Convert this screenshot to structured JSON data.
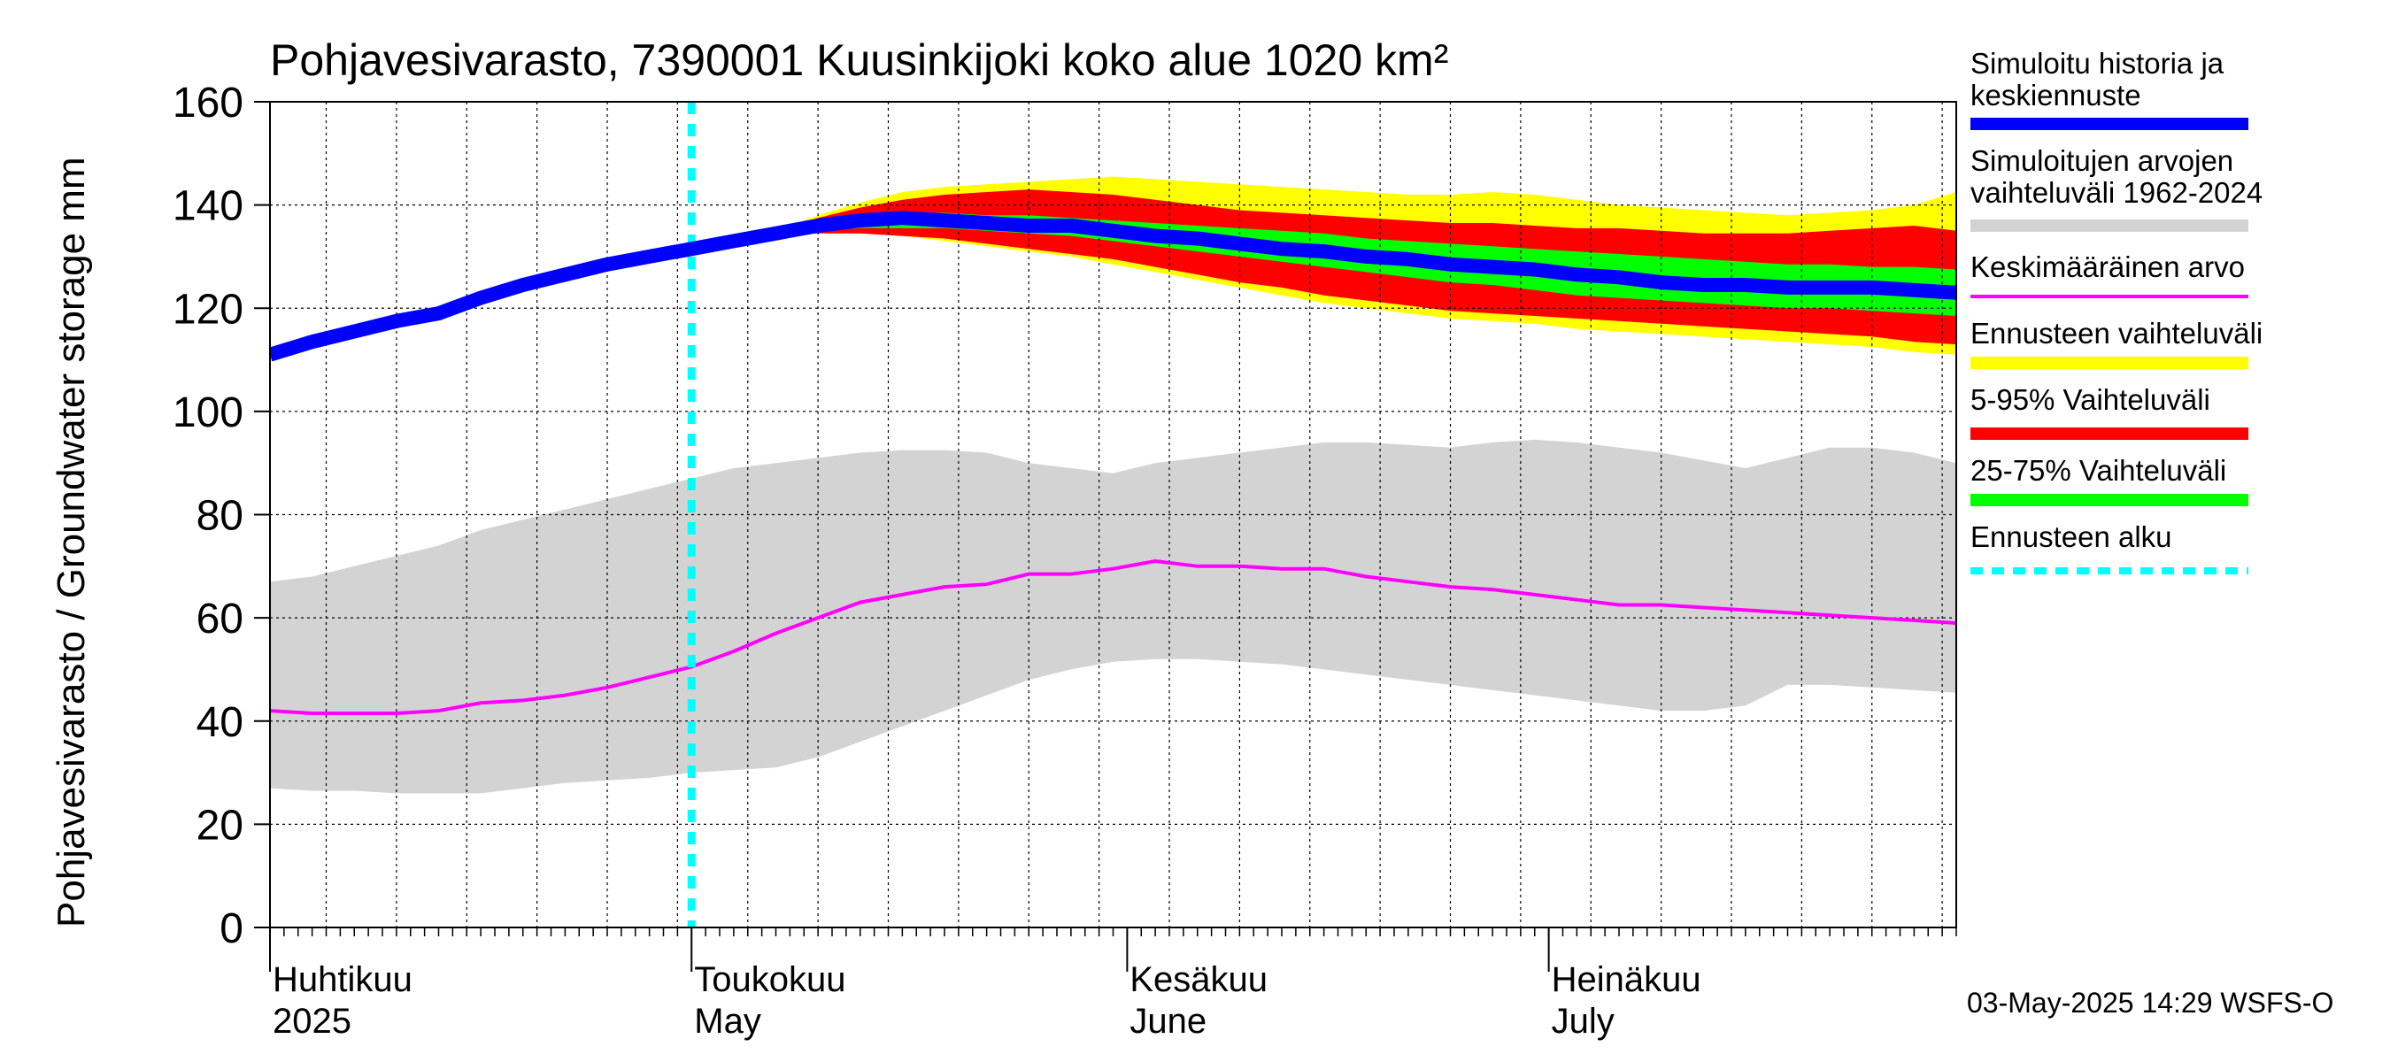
{
  "chart_data": {
    "type": "area",
    "title": "Pohjavesivarasto, 7390001 Kuusinkijoki koko alue 1020 km²",
    "ylabel": "Pohjavesivarasto / Groundwater storage   mm",
    "ylim": [
      0,
      160
    ],
    "yticks": [
      0,
      20,
      40,
      60,
      80,
      100,
      120,
      140,
      160
    ],
    "x_range_days": [
      0,
      120
    ],
    "x_start_date": "2025-04-01",
    "forecast_start_day": 30,
    "month_labels": [
      {
        "day": 0,
        "fi": "Huhtikuu",
        "en": "2025"
      },
      {
        "day": 30,
        "fi": "Toukokuu",
        "en": "May"
      },
      {
        "day": 61,
        "fi": "Kesäkuu",
        "en": "June"
      },
      {
        "day": 91,
        "fi": "Heinäkuu",
        "en": "July"
      }
    ],
    "grid": true,
    "legend": [
      {
        "label": "Simuloitu historia ja keskiennuste",
        "color": "#0000ff",
        "style": "thick"
      },
      {
        "label": "Simuloitujen arvojen vaihteluväli 1962-2024",
        "color": "#d3d3d3",
        "style": "band"
      },
      {
        "label": "Keskimääräinen arvo",
        "color": "#ff00ff",
        "style": "line"
      },
      {
        "label": "Ennusteen vaihteluväli",
        "color": "#ffff00",
        "style": "band"
      },
      {
        "label": "5-95% Vaihteluväli",
        "color": "#ff0000",
        "style": "band"
      },
      {
        "label": "25-75% Vaihteluväli",
        "color": "#00ff00",
        "style": "band"
      },
      {
        "label": "Ennusteen alku",
        "color": "#00ffff",
        "style": "dashed"
      }
    ],
    "series": {
      "history_band": {
        "x": [
          0,
          3,
          6,
          9,
          12,
          15,
          18,
          21,
          24,
          27,
          30,
          33,
          36,
          39,
          42,
          45,
          48,
          51,
          54,
          57,
          60,
          63,
          66,
          69,
          72,
          75,
          78,
          81,
          84,
          87,
          90,
          93,
          96,
          99,
          102,
          105,
          108,
          111,
          114,
          117,
          120
        ],
        "upper": [
          67,
          68,
          70,
          72,
          74,
          77,
          79,
          81,
          83,
          85,
          87,
          89,
          90,
          91,
          92,
          92.5,
          92.5,
          92,
          90,
          89,
          88,
          90,
          91,
          92,
          93,
          94,
          94,
          93.5,
          93,
          94,
          94.5,
          94,
          93,
          92,
          90.5,
          89,
          91,
          93,
          93,
          92,
          90
        ],
        "lower": [
          27,
          26.5,
          26.5,
          26,
          26,
          26,
          27,
          28,
          28.5,
          29,
          30,
          30.5,
          31,
          33,
          36,
          39,
          42,
          45,
          48,
          50,
          51.5,
          52,
          52,
          51.5,
          51,
          50,
          49,
          48,
          47,
          46,
          45,
          44,
          43,
          42,
          42,
          43,
          47,
          47,
          46.5,
          46,
          45.5
        ]
      },
      "mean": {
        "x": [
          0,
          3,
          6,
          9,
          12,
          15,
          18,
          21,
          24,
          27,
          30,
          33,
          36,
          39,
          42,
          45,
          48,
          51,
          54,
          57,
          60,
          63,
          66,
          69,
          72,
          75,
          78,
          81,
          84,
          87,
          90,
          93,
          96,
          99,
          102,
          105,
          108,
          111,
          114,
          117,
          120
        ],
        "values": [
          42,
          41.5,
          41.5,
          41.5,
          42,
          43.5,
          44,
          45,
          46.5,
          48.5,
          50.5,
          53.5,
          57,
          60,
          63,
          64.5,
          66,
          66.5,
          68.5,
          68.5,
          69.5,
          71,
          70,
          70,
          69.5,
          69.5,
          68,
          67,
          66,
          65.5,
          64.5,
          63.5,
          62.5,
          62.5,
          62,
          61.5,
          61,
          60.5,
          60,
          59.5,
          59
        ]
      },
      "simulated": {
        "x": [
          0,
          3,
          6,
          9,
          12,
          15,
          18,
          21,
          24,
          27,
          30,
          33,
          36,
          39,
          42,
          45,
          48,
          51,
          54,
          57,
          60,
          63,
          66,
          69,
          72,
          75,
          78,
          81,
          84,
          87,
          90,
          93,
          96,
          99,
          102,
          105,
          108,
          111,
          114,
          117,
          120
        ],
        "values": [
          111,
          113.5,
          115.5,
          117.5,
          119,
          122,
          124.5,
          126.5,
          128.5,
          130,
          131.5,
          133,
          134.5,
          136,
          137,
          137.5,
          137,
          136.5,
          136,
          136,
          135,
          134,
          133.5,
          132.5,
          131.5,
          131,
          130,
          129.5,
          128.5,
          128,
          127.5,
          126.5,
          126,
          125,
          124.5,
          124.5,
          124,
          124,
          124,
          123.5,
          123
        ]
      },
      "forecast_band": {
        "x": [
          36,
          39,
          42,
          45,
          48,
          51,
          54,
          57,
          60,
          63,
          66,
          69,
          72,
          75,
          78,
          81,
          84,
          87,
          90,
          93,
          96,
          99,
          102,
          105,
          108,
          111,
          114,
          117,
          120
        ],
        "upper": [
          135,
          138,
          140.5,
          142.5,
          143.5,
          144,
          144.5,
          145,
          145.5,
          145,
          144.5,
          144,
          143.5,
          143,
          142.5,
          142,
          142,
          142.5,
          142,
          141,
          140,
          139.5,
          139,
          138.5,
          138,
          138.5,
          139,
          140,
          142.5
        ],
        "lower": [
          134.5,
          134.5,
          134.5,
          134,
          133,
          132,
          131,
          130,
          128.5,
          127,
          125.5,
          124,
          122.5,
          121,
          120,
          119,
          118,
          117.5,
          117,
          116,
          115.5,
          115,
          114.5,
          114,
          113.5,
          113,
          112.5,
          111.5,
          111
        ]
      },
      "p5_95": {
        "x": [
          36,
          39,
          42,
          45,
          48,
          51,
          54,
          57,
          60,
          63,
          66,
          69,
          72,
          75,
          78,
          81,
          84,
          87,
          90,
          93,
          96,
          99,
          102,
          105,
          108,
          111,
          114,
          117,
          120
        ],
        "upper": [
          135,
          137.5,
          139.5,
          141,
          142,
          142.5,
          143,
          142.5,
          142,
          141,
          140,
          139,
          138.5,
          138,
          137.5,
          137,
          136.5,
          136.5,
          136,
          135.5,
          135.5,
          135,
          134.5,
          134.5,
          134.5,
          135,
          135.5,
          136,
          135
        ],
        "lower": [
          134.5,
          134.5,
          134.5,
          134,
          133.5,
          132.5,
          131.5,
          130.5,
          129.5,
          128,
          126.5,
          125,
          124,
          122.5,
          121.5,
          120.5,
          119.5,
          119,
          118.5,
          118,
          117.5,
          117,
          116.5,
          116,
          115.5,
          115,
          114.5,
          113.5,
          113
        ]
      },
      "p25_75": {
        "x": [
          36,
          39,
          42,
          45,
          48,
          51,
          54,
          57,
          60,
          63,
          66,
          69,
          72,
          75,
          78,
          81,
          84,
          87,
          90,
          93,
          96,
          99,
          102,
          105,
          108,
          111,
          114,
          117,
          120
        ],
        "upper": [
          135,
          137,
          138,
          138.5,
          138.5,
          138,
          138,
          137.5,
          137,
          136.5,
          136,
          135.5,
          135,
          134.5,
          133.5,
          133,
          132.5,
          132,
          131.5,
          131,
          130.5,
          130,
          129.5,
          129,
          128.5,
          128.5,
          128,
          128,
          127.5
        ],
        "lower": [
          134.5,
          135,
          135.5,
          135.5,
          135.5,
          135,
          134.5,
          134,
          133,
          132,
          131,
          130,
          129,
          128,
          127,
          126,
          125,
          124.5,
          123.5,
          122.5,
          122,
          121.5,
          121,
          120.5,
          120,
          120,
          119.5,
          119,
          118.5
        ]
      }
    }
  },
  "footer": {
    "timestamp": "03-May-2025 14:29 WSFS-O"
  }
}
